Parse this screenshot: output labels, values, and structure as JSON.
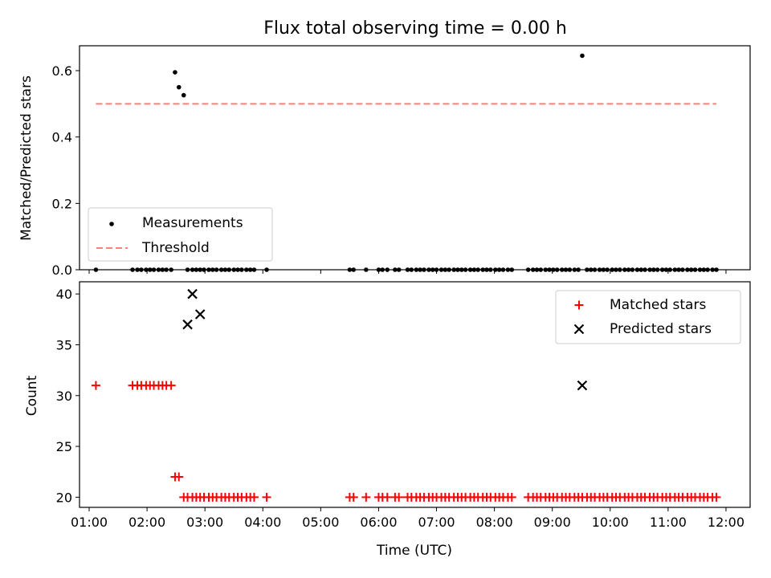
{
  "chart_data": [
    {
      "type": "scatter",
      "title": "Flux total observing time = 0.00 h",
      "xlabel": "",
      "ylabel": "Matched/Predicted stars",
      "xlim": [
        "00:50",
        "12:25"
      ],
      "ylim": [
        0,
        0.675
      ],
      "yticks": [
        0.0,
        0.2,
        0.4,
        0.6
      ],
      "ytick_labels": [
        "0.0",
        "0.2",
        "0.4",
        "0.6"
      ],
      "grid": false,
      "legend": {
        "position": "lower-left",
        "entries": [
          "Measurements",
          "Threshold"
        ]
      },
      "series": [
        {
          "name": "Measurements",
          "marker": "dot",
          "color": "#000000",
          "x": [
            "01:07",
            "01:45",
            "01:50",
            "01:54",
            "01:59",
            "02:03",
            "02:07",
            "02:12",
            "02:16",
            "02:20",
            "02:25",
            "02:29",
            "02:33",
            "02:38",
            "02:42",
            "02:47",
            "02:51",
            "02:55",
            "02:59",
            "03:04",
            "03:08",
            "03:12",
            "03:17",
            "03:21",
            "03:25",
            "03:30",
            "03:34",
            "03:38",
            "03:43",
            "03:47",
            "03:51",
            "04:04",
            "05:30",
            "05:34",
            "05:47",
            "06:00",
            "06:04",
            "06:09",
            "06:17",
            "06:21",
            "06:30",
            "06:34",
            "06:39",
            "06:43",
            "06:47",
            "06:52",
            "06:56",
            "07:00",
            "07:05",
            "07:09",
            "07:13",
            "07:18",
            "07:22",
            "07:26",
            "07:30",
            "07:35",
            "07:39",
            "07:43",
            "07:48",
            "07:52",
            "07:56",
            "08:01",
            "08:05",
            "08:09",
            "08:14",
            "08:18",
            "08:35",
            "08:40",
            "08:44",
            "08:48",
            "08:53",
            "08:57",
            "09:01",
            "09:05",
            "09:10",
            "09:14",
            "09:18",
            "09:23",
            "09:27",
            "09:31",
            "09:36",
            "09:40",
            "09:44",
            "09:49",
            "09:53",
            "09:57",
            "10:02",
            "10:06",
            "10:10",
            "10:15",
            "10:19",
            "10:23",
            "10:28",
            "10:32",
            "10:36",
            "10:41",
            "10:45",
            "10:49",
            "10:54",
            "10:58",
            "11:02",
            "11:07",
            "11:11",
            "11:15",
            "11:20",
            "11:24",
            "11:28",
            "11:33",
            "11:37",
            "11:41",
            "11:46",
            "11:50"
          ],
          "y": [
            0,
            0,
            0,
            0,
            0,
            0,
            0,
            0,
            0,
            0,
            0,
            0.595,
            0.55,
            0.526,
            0,
            0,
            0,
            0,
            0,
            0,
            0,
            0,
            0,
            0,
            0,
            0,
            0,
            0,
            0,
            0,
            0,
            0,
            0,
            0,
            0,
            0,
            0,
            0,
            0,
            0,
            0,
            0,
            0,
            0,
            0,
            0,
            0,
            0,
            0,
            0,
            0,
            0,
            0,
            0,
            0,
            0,
            0,
            0,
            0,
            0,
            0,
            0,
            0,
            0,
            0,
            0,
            0,
            0,
            0,
            0,
            0,
            0,
            0,
            0,
            0,
            0,
            0,
            0,
            0,
            0.645,
            0,
            0,
            0,
            0,
            0,
            0,
            0,
            0,
            0,
            0,
            0,
            0,
            0,
            0,
            0,
            0,
            0,
            0,
            0,
            0,
            0,
            0,
            0,
            0,
            0,
            0,
            0,
            0,
            0,
            0,
            0,
            0
          ]
        },
        {
          "name": "Threshold",
          "style": "dashed",
          "color": "#ff7f7f",
          "x": [
            "01:07",
            "11:50"
          ],
          "y": [
            0.5,
            0.5
          ]
        }
      ]
    },
    {
      "type": "scatter",
      "title": "",
      "xlabel": "Time (UTC)",
      "ylabel": "Count",
      "xlim": [
        "00:50",
        "12:25"
      ],
      "ylim": [
        19.0,
        41.2
      ],
      "xticks": [
        "01:00",
        "02:00",
        "03:00",
        "04:00",
        "05:00",
        "06:00",
        "07:00",
        "08:00",
        "09:00",
        "10:00",
        "11:00",
        "12:00"
      ],
      "yticks": [
        20,
        25,
        30,
        35,
        40
      ],
      "ytick_labels": [
        "20",
        "25",
        "30",
        "35",
        "40"
      ],
      "grid": false,
      "legend": {
        "position": "top-right",
        "entries": [
          "Matched stars",
          "Predicted stars"
        ]
      },
      "series": [
        {
          "name": "Matched stars",
          "marker": "plus",
          "color": "#ff0000",
          "x": [
            "01:07",
            "01:45",
            "01:50",
            "01:54",
            "01:59",
            "02:03",
            "02:07",
            "02:12",
            "02:16",
            "02:20",
            "02:25",
            "02:29",
            "02:33",
            "02:38",
            "02:42",
            "02:47",
            "02:51",
            "02:55",
            "02:59",
            "03:04",
            "03:08",
            "03:12",
            "03:17",
            "03:21",
            "03:25",
            "03:30",
            "03:34",
            "03:38",
            "03:43",
            "03:47",
            "03:51",
            "04:04",
            "05:30",
            "05:34",
            "05:47",
            "06:00",
            "06:04",
            "06:09",
            "06:17",
            "06:21",
            "06:30",
            "06:34",
            "06:39",
            "06:43",
            "06:47",
            "06:52",
            "06:56",
            "07:00",
            "07:05",
            "07:09",
            "07:13",
            "07:18",
            "07:22",
            "07:26",
            "07:30",
            "07:35",
            "07:39",
            "07:43",
            "07:48",
            "07:52",
            "07:56",
            "08:01",
            "08:05",
            "08:09",
            "08:14",
            "08:18",
            "08:35",
            "08:40",
            "08:44",
            "08:48",
            "08:53",
            "08:57",
            "09:01",
            "09:05",
            "09:10",
            "09:14",
            "09:18",
            "09:23",
            "09:27",
            "09:31",
            "09:36",
            "09:40",
            "09:44",
            "09:49",
            "09:53",
            "09:57",
            "10:02",
            "10:06",
            "10:10",
            "10:15",
            "10:19",
            "10:23",
            "10:28",
            "10:32",
            "10:36",
            "10:41",
            "10:45",
            "10:49",
            "10:54",
            "10:58",
            "11:02",
            "11:07",
            "11:11",
            "11:15",
            "11:20",
            "11:24",
            "11:28",
            "11:33",
            "11:37",
            "11:41",
            "11:46",
            "11:50"
          ],
          "y": [
            31,
            31,
            31,
            31,
            31,
            31,
            31,
            31,
            31,
            31,
            31,
            22,
            22,
            20,
            20,
            20,
            20,
            20,
            20,
            20,
            20,
            20,
            20,
            20,
            20,
            20,
            20,
            20,
            20,
            20,
            20,
            20,
            20,
            20,
            20,
            20,
            20,
            20,
            20,
            20,
            20,
            20,
            20,
            20,
            20,
            20,
            20,
            20,
            20,
            20,
            20,
            20,
            20,
            20,
            20,
            20,
            20,
            20,
            20,
            20,
            20,
            20,
            20,
            20,
            20,
            20,
            20,
            20,
            20,
            20,
            20,
            20,
            20,
            20,
            20,
            20,
            20,
            20,
            20,
            20,
            20,
            20,
            20,
            20,
            20,
            20,
            20,
            20,
            20,
            20,
            20,
            20,
            20,
            20,
            20,
            20,
            20,
            20,
            20,
            20,
            20,
            20,
            20,
            20,
            20,
            20,
            20,
            20,
            20,
            20,
            20,
            20
          ]
        },
        {
          "name": "Predicted stars",
          "marker": "x",
          "color": "#000000",
          "x": [
            "02:42",
            "02:47",
            "02:55",
            "09:31"
          ],
          "y": [
            37,
            40,
            38,
            31
          ]
        }
      ]
    }
  ]
}
